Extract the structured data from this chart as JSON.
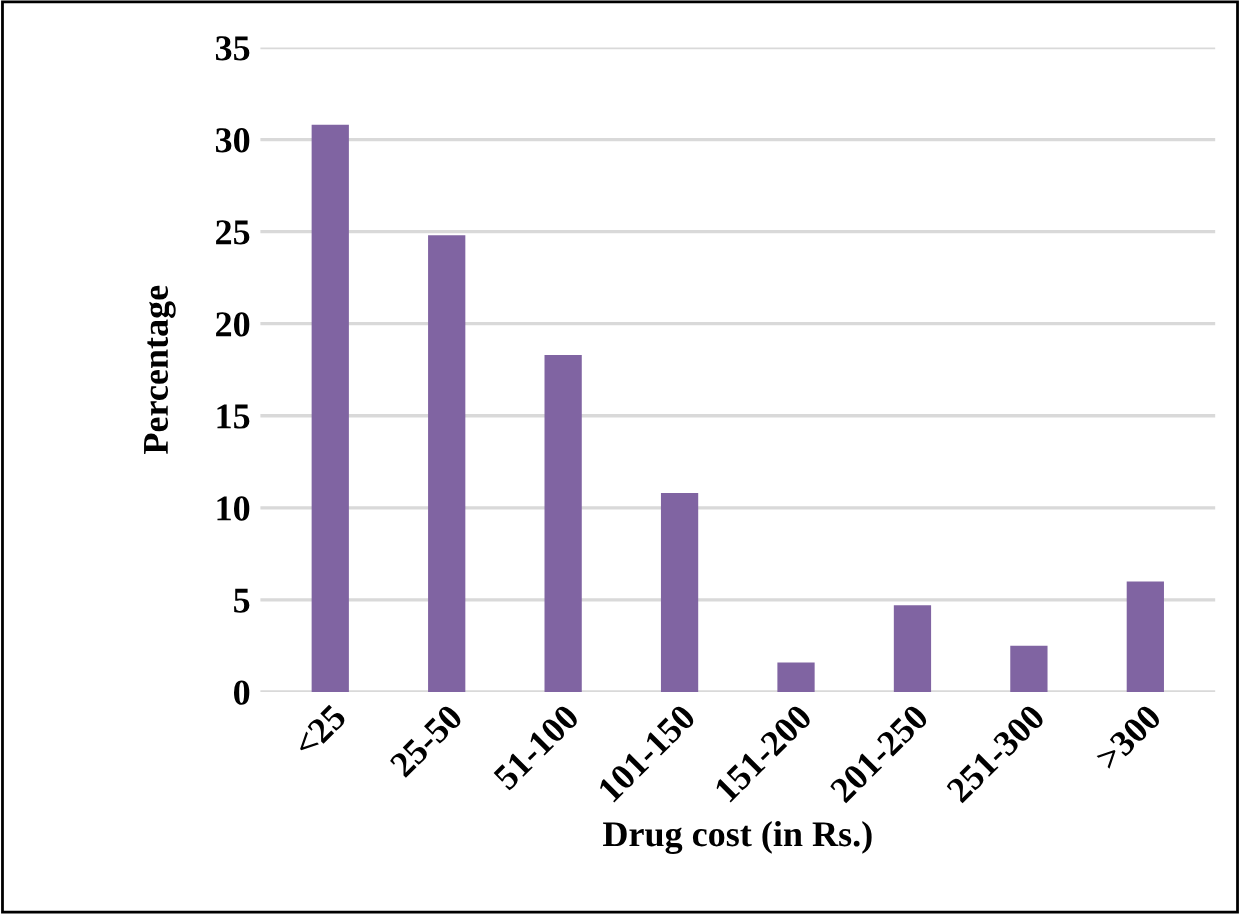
{
  "chart_data": {
    "type": "bar",
    "xlabel": "Drug cost (in Rs.)",
    "ylabel": "Percentage",
    "categories": [
      "<25",
      "25-50",
      "51-100",
      "101-150",
      "151-200",
      "201-250",
      "251-300",
      ">300"
    ],
    "values": [
      30.8,
      24.8,
      18.3,
      10.8,
      1.6,
      4.7,
      2.5,
      6.0
    ],
    "color": "#8064a2",
    "ylim": [
      0,
      35
    ],
    "yticks": [
      0,
      5,
      10,
      15,
      20,
      25,
      30,
      35
    ],
    "grid": "y",
    "legend": false
  }
}
